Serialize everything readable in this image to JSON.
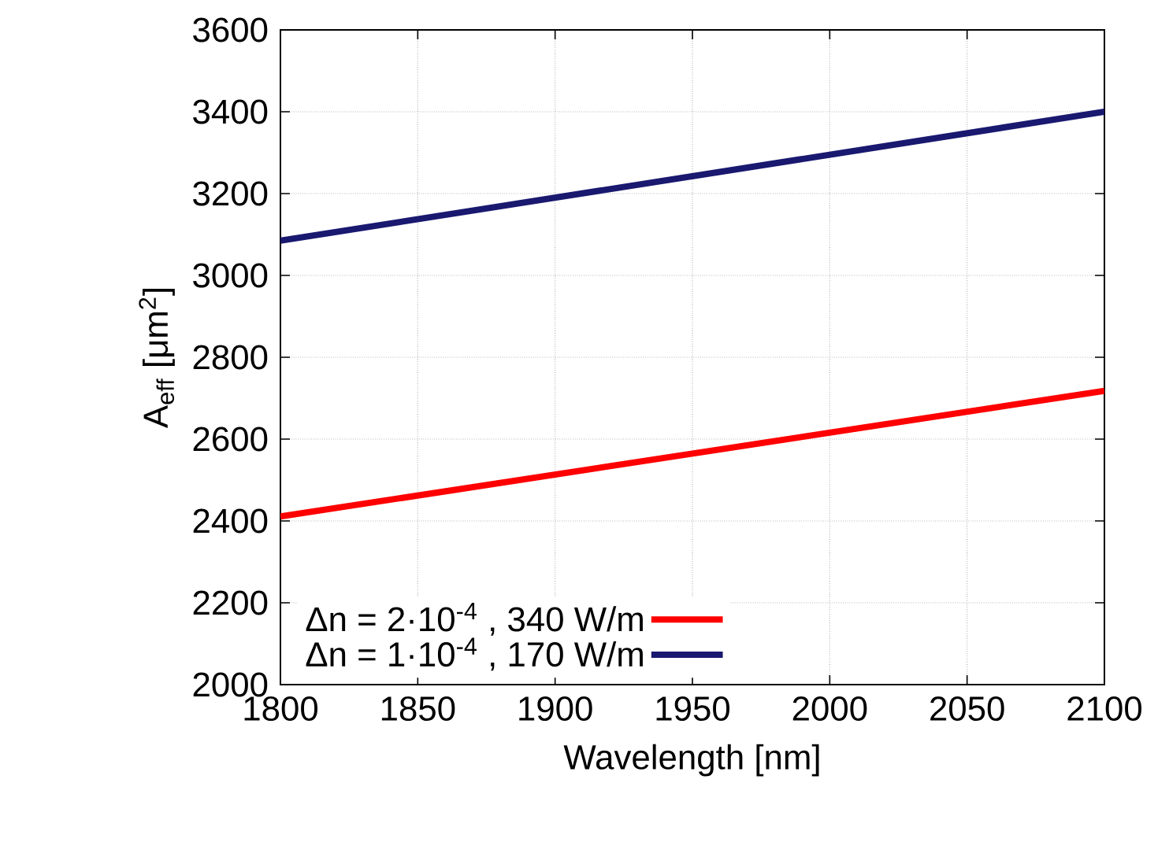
{
  "chart_data": {
    "type": "line",
    "xlabel": "Wavelength [nm]",
    "ylabel": "A$_{eff}$ [μm$^{2}$]",
    "x": [
      1800,
      2100
    ],
    "series": [
      {
        "name": "Δn = 2·10$^{-4}$ , 340 W/m",
        "color": "#ff0000",
        "values": [
          2411,
          2718
        ]
      },
      {
        "name": "Δn = 1·10$^{-4}$ , 170 W/m",
        "color": "#191970",
        "values": [
          3085,
          3400
        ]
      }
    ],
    "xlim": [
      1800,
      2100
    ],
    "ylim": [
      2000,
      3600
    ],
    "xticks": [
      1800,
      1850,
      1900,
      1950,
      2000,
      2050,
      2100
    ],
    "yticks": [
      2000,
      2200,
      2400,
      2600,
      2800,
      3000,
      3200,
      3400,
      3600
    ],
    "grid": true,
    "legend": "bottom left",
    "marker": "none",
    "line_style": "solid"
  }
}
